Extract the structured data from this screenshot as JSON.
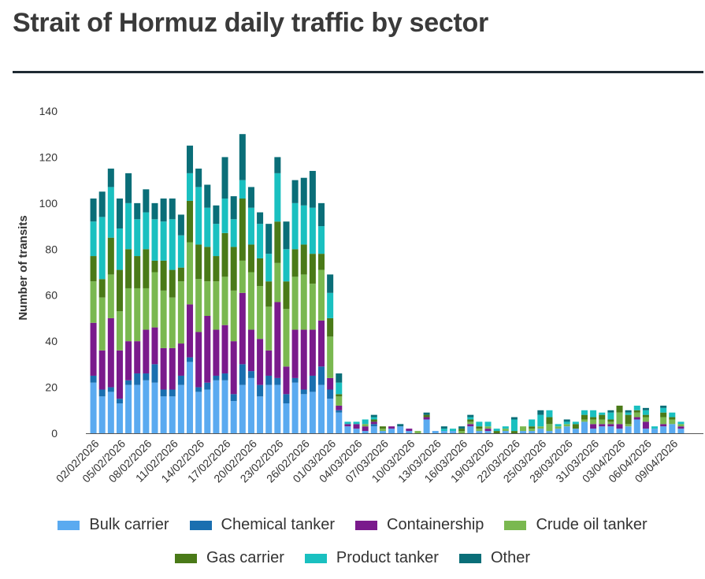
{
  "chart_data": {
    "type": "bar",
    "stacked": true,
    "title": "Strait of Hormuz daily traffic by sector",
    "xlabel": "",
    "ylabel": "Number of transits",
    "ylim": [
      0,
      140
    ],
    "yticks": [
      0,
      20,
      40,
      60,
      80,
      100,
      120,
      140
    ],
    "categories": [
      "02/02/2026",
      "03/02/2026",
      "04/02/2026",
      "05/02/2026",
      "06/02/2026",
      "07/02/2026",
      "08/02/2026",
      "09/02/2026",
      "10/02/2026",
      "11/02/2026",
      "12/02/2026",
      "13/02/2026",
      "14/02/2026",
      "15/02/2026",
      "16/02/2026",
      "17/02/2026",
      "18/02/2026",
      "19/02/2026",
      "20/02/2026",
      "21/02/2026",
      "22/02/2026",
      "23/02/2026",
      "24/02/2026",
      "25/02/2026",
      "26/02/2026",
      "27/02/2026",
      "28/02/2026",
      "01/03/2026",
      "02/03/2026",
      "03/03/2026",
      "04/03/2026",
      "05/03/2026",
      "06/03/2026",
      "07/03/2026",
      "08/03/2026",
      "09/03/2026",
      "10/03/2026",
      "11/03/2026",
      "12/03/2026",
      "13/03/2026",
      "14/03/2026",
      "15/03/2026",
      "16/03/2026",
      "17/03/2026",
      "18/03/2026",
      "19/03/2026",
      "20/03/2026",
      "21/03/2026",
      "22/03/2026",
      "23/03/2026",
      "24/03/2026",
      "25/03/2026",
      "26/03/2026",
      "27/03/2026",
      "28/03/2026",
      "29/03/2026",
      "30/03/2026",
      "31/03/2026",
      "01/04/2026",
      "02/04/2026",
      "03/04/2026",
      "04/04/2026",
      "05/04/2026",
      "06/04/2026",
      "07/04/2026",
      "08/04/2026",
      "09/04/2026",
      "10/04/2026"
    ],
    "tick_labels": [
      "02/02/2026",
      "05/02/2026",
      "08/02/2026",
      "11/02/2026",
      "14/02/2026",
      "17/02/2026",
      "20/02/2026",
      "23/02/2026",
      "26/02/2026",
      "01/03/2026",
      "04/03/2026",
      "07/03/2026",
      "10/03/2026",
      "13/03/2026",
      "16/03/2026",
      "19/03/2026",
      "22/03/2026",
      "25/03/2026",
      "28/03/2026",
      "31/03/2026",
      "03/04/2026",
      "06/04/2026",
      "09/04/2026"
    ],
    "series": [
      {
        "name": "Bulk carrier",
        "color": "#5aaaf0",
        "values": [
          22,
          16,
          18,
          13,
          21,
          21,
          23,
          22,
          16,
          16,
          21,
          31,
          18,
          19,
          23,
          23,
          14,
          21,
          24,
          16,
          21,
          21,
          13,
          22,
          17,
          18,
          21,
          15,
          9,
          3,
          2,
          1,
          3,
          1,
          2,
          3,
          1,
          0,
          6,
          1,
          1,
          1,
          0,
          3,
          1,
          1,
          0,
          1,
          0,
          1,
          1,
          2,
          1,
          2,
          3,
          2,
          5,
          2,
          3,
          3,
          2,
          3,
          6,
          2,
          2,
          3,
          4,
          2
        ]
      },
      {
        "name": "Chemical tanker",
        "color": "#1a6fb0",
        "values": [
          3,
          3,
          2,
          2,
          2,
          5,
          3,
          8,
          3,
          3,
          4,
          2,
          2,
          3,
          2,
          3,
          3,
          9,
          3,
          5,
          4,
          3,
          4,
          2,
          2,
          7,
          8,
          4,
          1,
          0,
          0,
          0,
          1,
          0,
          0,
          0,
          0,
          0,
          0,
          0,
          0,
          0,
          0,
          0,
          0,
          0,
          0,
          0,
          0,
          0,
          0,
          0,
          0,
          0,
          0,
          0,
          0,
          0,
          0,
          0,
          0,
          0,
          0,
          0,
          0,
          0,
          0,
          0
        ]
      },
      {
        "name": "Containership",
        "color": "#7a1a8c",
        "values": [
          23,
          17,
          30,
          21,
          17,
          14,
          19,
          16,
          18,
          18,
          14,
          23,
          24,
          29,
          20,
          21,
          23,
          31,
          18,
          20,
          11,
          33,
          12,
          21,
          26,
          20,
          20,
          5,
          2,
          1,
          2,
          2,
          1,
          0,
          1,
          0,
          1,
          0,
          1,
          0,
          0,
          0,
          0,
          1,
          0,
          1,
          0,
          0,
          0,
          0,
          0,
          0,
          0,
          0,
          0,
          0,
          0,
          2,
          1,
          1,
          2,
          0,
          1,
          3,
          0,
          1,
          0,
          1
        ]
      },
      {
        "name": "Crude oil tanker",
        "color": "#7ab850",
        "values": [
          18,
          23,
          19,
          17,
          23,
          23,
          18,
          24,
          25,
          22,
          27,
          27,
          23,
          15,
          21,
          21,
          22,
          14,
          25,
          23,
          19,
          17,
          25,
          23,
          24,
          20,
          22,
          18,
          4,
          0,
          0,
          1,
          0,
          1,
          0,
          0,
          0,
          1,
          0,
          0,
          0,
          0,
          1,
          1,
          1,
          1,
          0,
          1,
          0,
          2,
          1,
          1,
          3,
          1,
          1,
          0,
          1,
          2,
          2,
          1,
          5,
          1,
          2,
          2,
          0,
          3,
          2,
          1
        ]
      },
      {
        "name": "Gas carrier",
        "color": "#4a7a18",
        "values": [
          11,
          8,
          16,
          18,
          17,
          14,
          17,
          5,
          13,
          12,
          6,
          18,
          15,
          15,
          11,
          19,
          19,
          27,
          12,
          12,
          11,
          18,
          12,
          12,
          13,
          13,
          7,
          8,
          1,
          0,
          0,
          0,
          1,
          1,
          0,
          0,
          0,
          0,
          1,
          0,
          0,
          0,
          1,
          1,
          1,
          0,
          1,
          0,
          1,
          0,
          1,
          0,
          3,
          0,
          0,
          2,
          2,
          1,
          2,
          1,
          3,
          4,
          1,
          1,
          0,
          2,
          1,
          0
        ]
      },
      {
        "name": "Product tanker",
        "color": "#1ac0c0",
        "values": [
          15,
          27,
          22,
          18,
          20,
          16,
          16,
          18,
          17,
          22,
          14,
          12,
          25,
          17,
          14,
          15,
          12,
          8,
          16,
          15,
          12,
          21,
          14,
          20,
          17,
          20,
          12,
          11,
          5,
          1,
          1,
          2,
          1,
          0,
          0,
          0,
          0,
          0,
          0,
          0,
          1,
          1,
          0,
          1,
          2,
          2,
          1,
          1,
          5,
          0,
          3,
          5,
          3,
          1,
          1,
          1,
          2,
          3,
          1,
          3,
          0,
          1,
          2,
          2,
          1,
          2,
          2,
          1
        ]
      },
      {
        "name": "Other",
        "color": "#0a6e78",
        "values": [
          10,
          11,
          8,
          13,
          13,
          7,
          10,
          7,
          10,
          9,
          9,
          12,
          8,
          10,
          8,
          18,
          10,
          20,
          9,
          5,
          13,
          7,
          12,
          10,
          12,
          16,
          10,
          8,
          4,
          0,
          0,
          0,
          1,
          0,
          0,
          1,
          0,
          0,
          1,
          0,
          1,
          0,
          1,
          1,
          0,
          0,
          0,
          0,
          1,
          0,
          0,
          2,
          0,
          0,
          1,
          0,
          0,
          0,
          0,
          1,
          0,
          1,
          0,
          1,
          0,
          1,
          0,
          0
        ]
      }
    ]
  }
}
